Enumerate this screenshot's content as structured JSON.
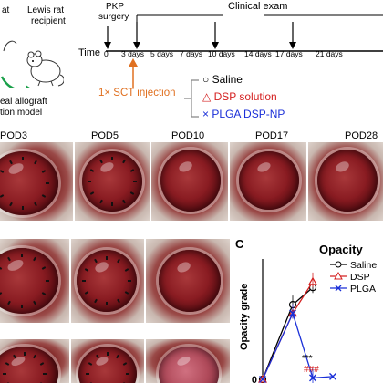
{
  "panel_a": {
    "rat_donor": "at",
    "rat_recipient_line1": "Lewis rat",
    "rat_recipient_line2": "recipient",
    "model_line1": "eal allograft",
    "model_line2": "tion model",
    "pkp_line1": "PKP",
    "pkp_line2": "surgery",
    "clinical_exam": "Clinical exam",
    "time_label": "Time",
    "timepoints": [
      "0",
      "3 days",
      "5 days",
      "7 days",
      "10 days",
      "14 days",
      "17 days",
      "21 days"
    ],
    "injection_label": "1× SCT injection",
    "legend": [
      {
        "symbol": "○",
        "label": "Saline",
        "color": "#000000"
      },
      {
        "symbol": "△",
        "label": "DSP solution",
        "color": "#d42020"
      },
      {
        "symbol": "×",
        "label": "PLGA DSP-NP",
        "color": "#1a2fd8"
      }
    ],
    "injection_color": "#e07020"
  },
  "panel_b": {
    "pod_labels": [
      "POD3",
      "POD5",
      "POD10",
      "POD17",
      "POD28"
    ]
  },
  "panel_c": {
    "letter": "C"
  },
  "chart_data": {
    "type": "line",
    "title": "Opacity",
    "ylabel": "Opacity grade",
    "y_ticks": [
      "0"
    ],
    "x": [
      0,
      3,
      5,
      7,
      10
    ],
    "series": [
      {
        "name": "Saline",
        "color": "#000000",
        "marker": "circle",
        "values": [
          0,
          2.6,
          3.2,
          null,
          null
        ]
      },
      {
        "name": "DSP",
        "color": "#d42020",
        "marker": "triangle",
        "values": [
          0,
          2.3,
          3.4,
          null,
          null
        ]
      },
      {
        "name": "PLGA",
        "color": "#1a2fd8",
        "marker": "x",
        "values": [
          0,
          2.3,
          0.05,
          0.1,
          null
        ]
      }
    ],
    "annotations": [
      "***",
      "###"
    ],
    "ylim": [
      0,
      4
    ]
  }
}
